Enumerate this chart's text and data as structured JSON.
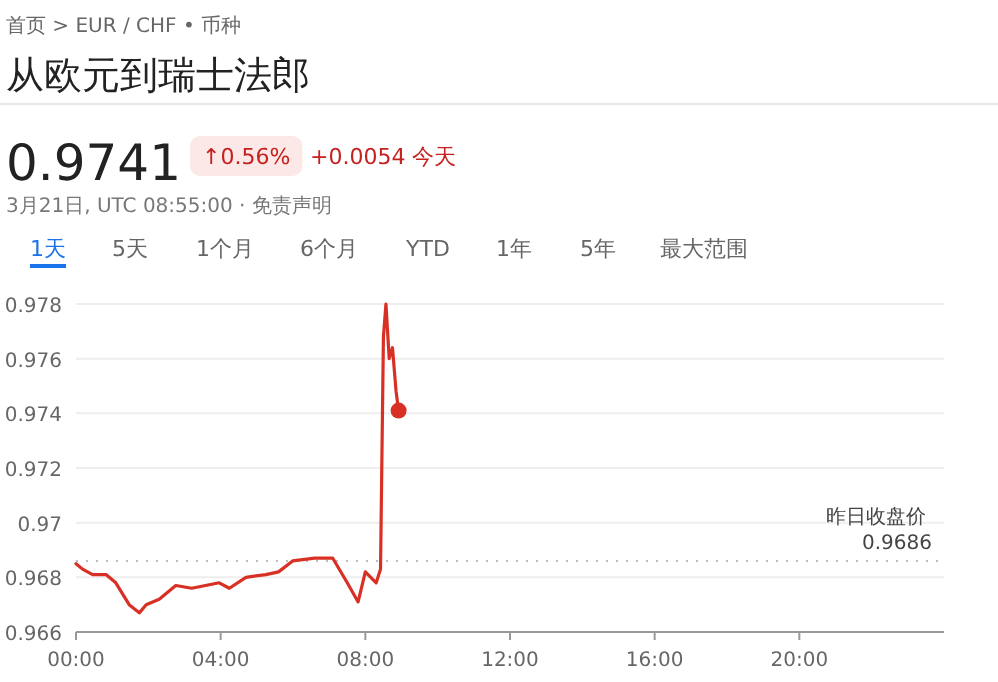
{
  "chart_data": {
    "type": "line",
    "title": "从欧元到瑞士法郎",
    "subtitle": "首页 > EUR / CHF • 币种",
    "annotations": [
      "0.9741",
      "↑0.56%",
      "+0.0054 今天",
      "3月21日, UTC 08:55:00 · 免责声明",
      "1天",
      "5天",
      "1个月",
      "6个月",
      "YTD",
      "1年",
      "5年",
      "最大范围"
    ],
    "xlim": [
      0,
      24
    ],
    "xticks": [
      {
        "value": 0,
        "label": "00:00"
      },
      {
        "value": 4,
        "label": "04:00"
      },
      {
        "value": 8,
        "label": "08:00"
      },
      {
        "value": 12,
        "label": "12:00"
      },
      {
        "value": 16,
        "label": "16:00"
      },
      {
        "value": 20,
        "label": "20:00"
      }
    ],
    "ylim": [
      0.966,
      0.978
    ],
    "yticks": [
      0.966,
      0.968,
      {
        "value": 0.97,
        "label": "0.97"
      },
      0.972,
      0.974,
      0.976,
      0.978
    ],
    "grid": "y",
    "ref_lines": [
      {
        "axis": "y",
        "value": 0.9686,
        "label": "昨日收盘价 0.9686",
        "color": "#bbbbbb",
        "line_style": "dotted"
      }
    ],
    "series": [
      {
        "color": "#d93025",
        "x": [
          0,
          0.18,
          0.46,
          0.83,
          1.1,
          1.47,
          1.75,
          1.94,
          2.3,
          2.76,
          3.2,
          3.96,
          4.24,
          4.7,
          5.25,
          5.6,
          5.99,
          6.6,
          7.1,
          7.5,
          7.8,
          8.0,
          8.3,
          8.42,
          8.5,
          8.57,
          8.66,
          8.75,
          8.85,
          8.92
        ],
        "values": [
          0.9685,
          0.9683,
          0.9681,
          0.9681,
          0.9678,
          0.967,
          0.9667,
          0.967,
          0.9672,
          0.9677,
          0.9676,
          0.9678,
          0.9676,
          0.968,
          0.9681,
          0.9682,
          0.9686,
          0.9687,
          0.9687,
          0.9678,
          0.9671,
          0.9682,
          0.9678,
          0.9683,
          0.9768,
          0.978,
          0.976,
          0.9764,
          0.9748,
          0.9741
        ]
      },
      {
        "type": "scatter",
        "color": "#d93025",
        "marker": "circle",
        "x": [
          8.92
        ],
        "values": [
          0.9741
        ]
      }
    ]
  }
}
